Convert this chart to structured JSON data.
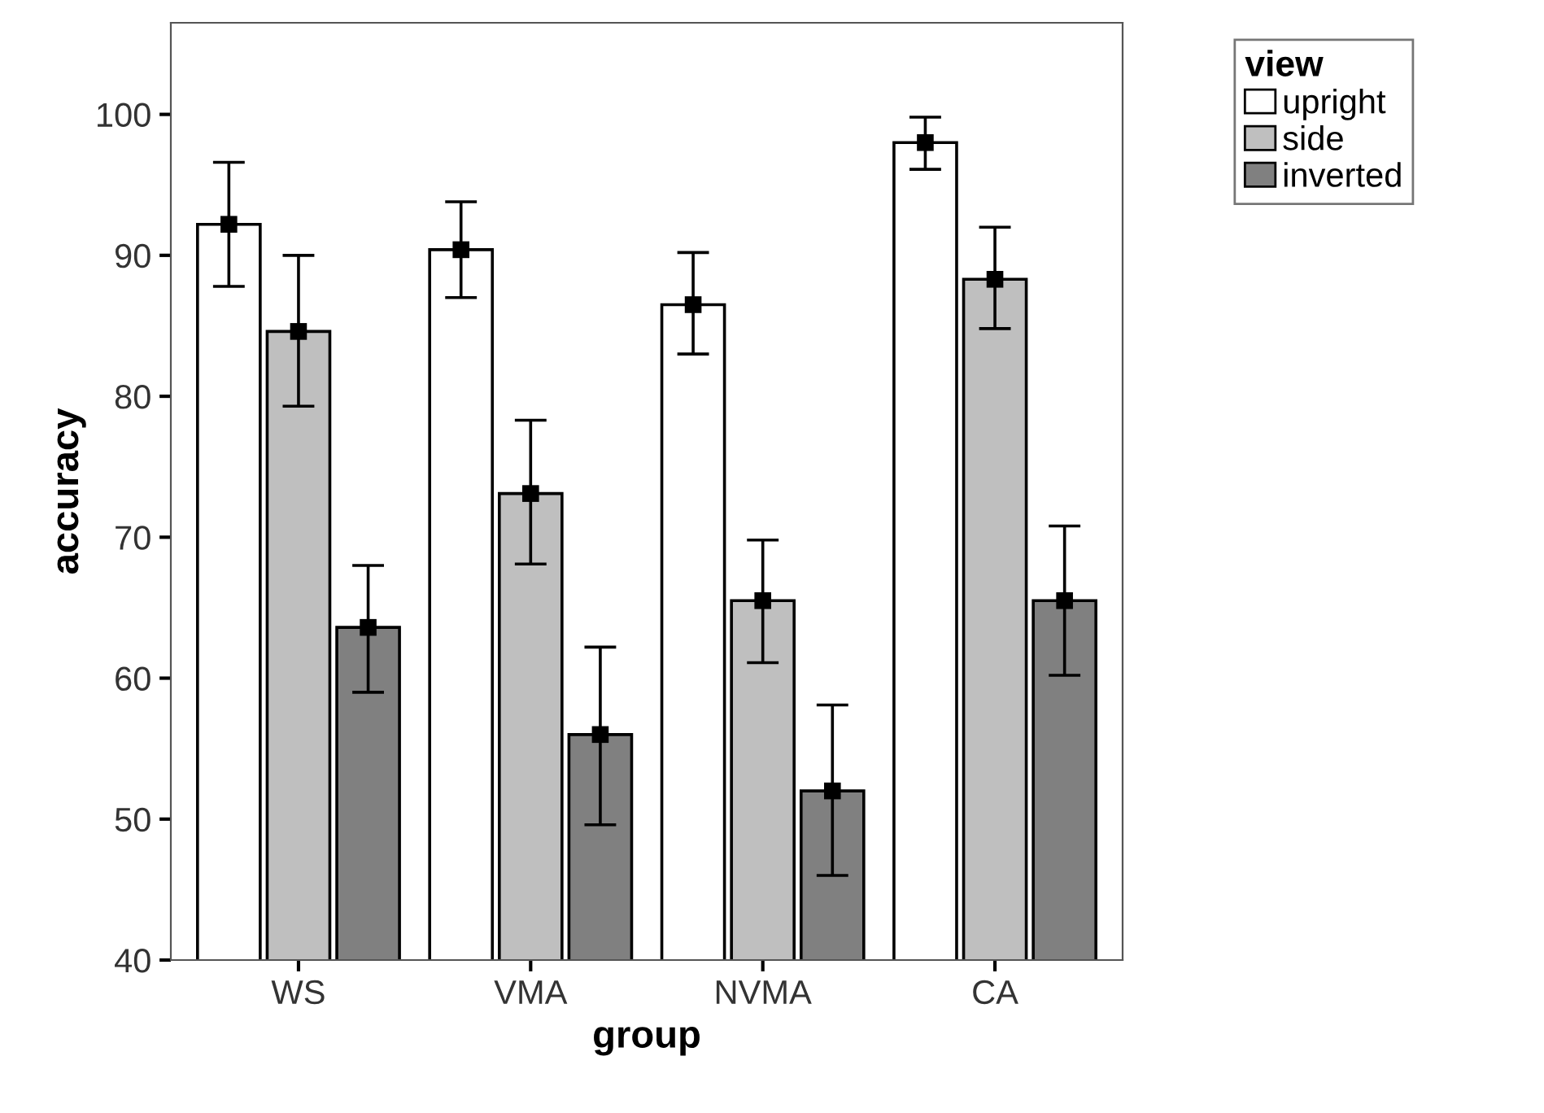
{
  "chart_data": {
    "type": "bar",
    "xlabel": "group",
    "ylabel": "accuracy",
    "legend_title": "view",
    "categories": [
      "WS",
      "VMA",
      "NVMA",
      "CA"
    ],
    "series": [
      {
        "name": "upright",
        "color": "#ffffff",
        "values": [
          92.2,
          90.4,
          86.5,
          98.0
        ],
        "errors": [
          [
            87.8,
            96.6
          ],
          [
            87.0,
            93.8
          ],
          [
            83.0,
            90.2
          ],
          [
            96.1,
            99.8
          ]
        ]
      },
      {
        "name": "side",
        "color": "#bfbfbf",
        "values": [
          84.6,
          73.1,
          65.5,
          88.3
        ],
        "errors": [
          [
            79.3,
            90.0
          ],
          [
            68.1,
            78.3
          ],
          [
            61.1,
            69.8
          ],
          [
            84.8,
            92.0
          ]
        ]
      },
      {
        "name": "inverted",
        "color": "#808080",
        "values": [
          63.6,
          56.0,
          52.0,
          65.5
        ],
        "errors": [
          [
            59.0,
            68.0
          ],
          [
            49.6,
            62.2
          ],
          [
            46.0,
            58.1
          ],
          [
            60.2,
            70.8
          ]
        ]
      },
      {
        "type": "scatter",
        "color": "#000000",
        "values": [
          92.2,
          90.4,
          86.5,
          98.0
        ]
      },
      {
        "type": "scatter",
        "color": "#000000",
        "values": [
          84.6,
          73.1,
          65.5,
          88.3
        ]
      },
      {
        "type": "scatter",
        "color": "#000000",
        "values": [
          63.6,
          56.0,
          52.0,
          65.5
        ]
      }
    ],
    "ylim": [
      40,
      106.5
    ],
    "yticks": [
      40,
      50,
      60,
      70,
      80,
      90,
      100
    ],
    "legend": "top right",
    "marker": "square",
    "grid": false
  }
}
